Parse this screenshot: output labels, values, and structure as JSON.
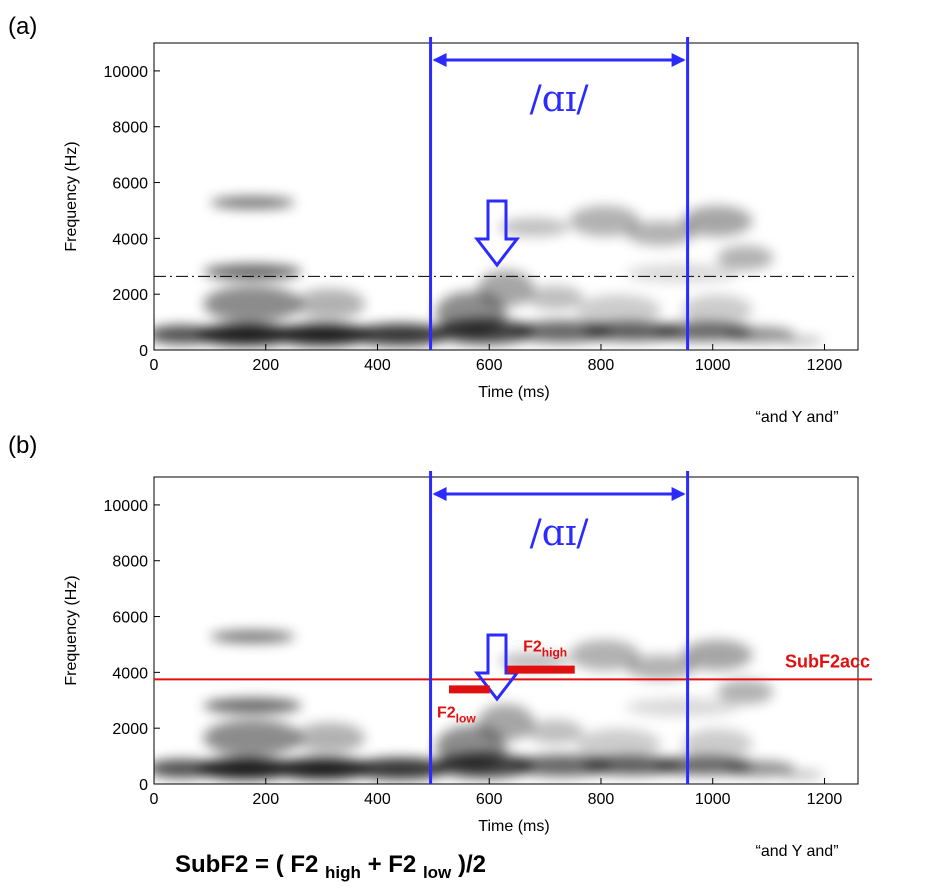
{
  "chart_data": [
    {
      "type": "spectrogram",
      "panel_label": "(a)",
      "xlabel": "Time (ms)",
      "ylabel": "Frequency (Hz)",
      "xlim": [
        0,
        1260
      ],
      "ylim": [
        0,
        11000
      ],
      "xticks": [
        0,
        200,
        400,
        600,
        800,
        1000,
        1200
      ],
      "yticks": [
        0,
        2000,
        4000,
        6000,
        8000,
        10000
      ],
      "caption": "“and Y and”",
      "segment": {
        "label": "/ɑɪ/",
        "start": 495,
        "end": 955,
        "color": "#2b2bff"
      },
      "reference_line": {
        "y": 2640,
        "color": "#000000",
        "style": "dash-dot"
      }
    },
    {
      "type": "spectrogram",
      "panel_label": "(b)",
      "xlabel": "Time (ms)",
      "ylabel": "Frequency (Hz)",
      "xlim": [
        0,
        1260
      ],
      "ylim": [
        0,
        11000
      ],
      "xticks": [
        0,
        200,
        400,
        600,
        800,
        1000,
        1200
      ],
      "yticks": [
        0,
        2000,
        4000,
        6000,
        8000,
        10000
      ],
      "caption": "“and Y and”",
      "segment": {
        "label": "/ɑɪ/",
        "start": 495,
        "end": 955,
        "color": "#2b2bff"
      },
      "reference_line": {
        "y": 3750,
        "color": "#e01010",
        "style": "solid",
        "label": "SubF2acc"
      },
      "markers": [
        {
          "name": "F2",
          "subscript": "low",
          "x": [
            528,
            601
          ],
          "y": 3390,
          "color": "#e01010"
        },
        {
          "name": "F2",
          "subscript": "high",
          "x": [
            632,
            753
          ],
          "y": 4100,
          "color": "#e01010"
        }
      ]
    }
  ],
  "formula": {
    "parts": [
      "SubF2 = ( F2 ",
      "high",
      " + F2 ",
      "low",
      " )/2"
    ]
  }
}
